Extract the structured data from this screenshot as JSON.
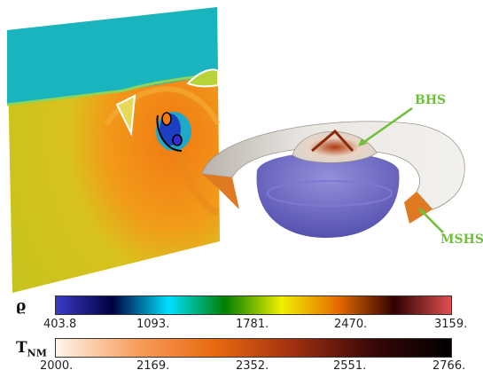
{
  "annotations": {
    "bhs": "BHS",
    "mshs": "MSHS"
  },
  "colorbars": {
    "rho": {
      "symbol": "ϱ",
      "ticks": [
        "403.8",
        "1093.",
        "1781.",
        "2470.",
        "3159."
      ],
      "colors": [
        "#3b3bc8",
        "#000040",
        "#00e0ff",
        "#008000",
        "#f0f000",
        "#e66a00",
        "#300000",
        "#e05050"
      ]
    },
    "tnm": {
      "symbol": "T",
      "subscript": "NM",
      "ticks": [
        "2000.",
        "2169.",
        "2352.",
        "2551.",
        "2766."
      ],
      "colors": [
        "#fff5ea",
        "#f7a060",
        "#ea6a10",
        "#a03010",
        "#3a0808",
        "#000000"
      ]
    }
  }
}
